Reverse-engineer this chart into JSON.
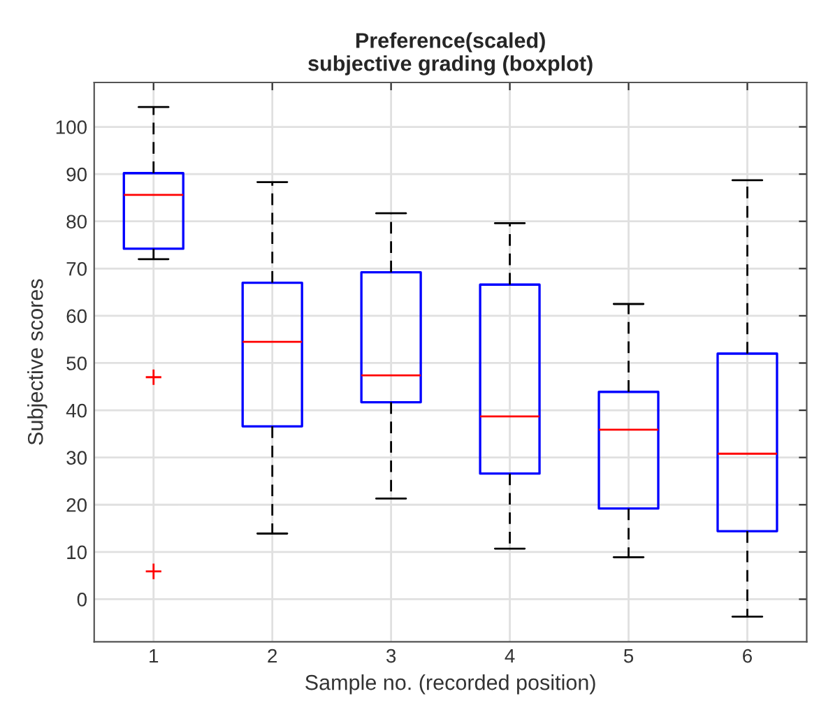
{
  "chart_data": {
    "type": "box",
    "title": "Preference(scaled)\nsubjective grading (boxplot)",
    "xlabel": "Sample no. (recorded position)",
    "ylabel": "Subjective scores",
    "categories": [
      "1",
      "2",
      "3",
      "4",
      "5",
      "6"
    ],
    "boxes": [
      {
        "low": 72.0,
        "q1": 74.2,
        "median": 85.6,
        "q3": 90.2,
        "high": 104.2,
        "outliers": [
          47.0,
          5.9
        ]
      },
      {
        "low": 13.9,
        "q1": 36.6,
        "median": 54.5,
        "q3": 67.0,
        "high": 88.3
      },
      {
        "low": 21.3,
        "q1": 41.7,
        "median": 47.4,
        "q3": 69.2,
        "high": 81.7
      },
      {
        "low": 10.7,
        "q1": 26.6,
        "median": 38.7,
        "q3": 66.6,
        "high": 79.6
      },
      {
        "low": 8.9,
        "q1": 19.2,
        "median": 35.9,
        "q3": 43.9,
        "high": 62.5
      },
      {
        "low": -3.7,
        "q1": 14.4,
        "median": 30.8,
        "q3": 52.0,
        "high": 88.7
      }
    ],
    "color": "#0000ff",
    "ylim": [
      -9,
      109.4
    ],
    "yticks": [
      0,
      10,
      20,
      30,
      40,
      50,
      60,
      70,
      80,
      90,
      100
    ],
    "grid": true
  }
}
